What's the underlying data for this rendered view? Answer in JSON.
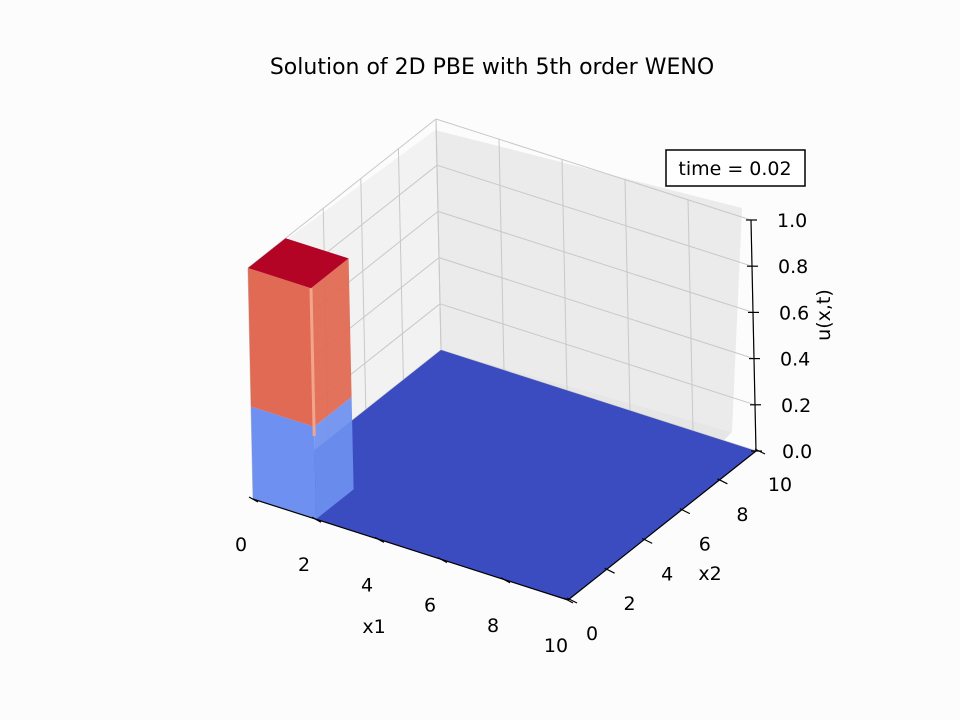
{
  "chart_data": {
    "type": "surface3d",
    "title": "Solution of 2D PBE with 5th order WENO",
    "xlabel": "x1",
    "ylabel": "x2",
    "zlabel": "u(x,t)",
    "annotation": "time = 0.02",
    "xlim": [
      0,
      10
    ],
    "ylim": [
      0,
      10
    ],
    "zlim": [
      0,
      1
    ],
    "x_ticks": [
      0,
      2,
      4,
      6,
      8,
      10
    ],
    "y_ticks": [
      0,
      2,
      4,
      6,
      8,
      10
    ],
    "z_ticks": [
      "0.0",
      "0.2",
      "0.4",
      "0.6",
      "0.8",
      "1.0"
    ],
    "grid": true,
    "colormap": "coolwarm",
    "colors": {
      "floor": "#3b4cc0",
      "lower_block": "#6e90f0",
      "upper_block": "#e06a53",
      "block_top": "#b40426",
      "highlight": "#f2a58b"
    },
    "surface": {
      "background_value": 0.0,
      "feature": {
        "x1_range": [
          0,
          2
        ],
        "x2_range": [
          0,
          2
        ],
        "levels": [
          {
            "z_range": [
              0.0,
              0.4
            ],
            "value": 0.3
          },
          {
            "z_range": [
              0.4,
              1.0
            ],
            "value": 0.8
          },
          {
            "z_range": [
              1.0,
              1.0
            ],
            "value": 1.0
          }
        ]
      }
    }
  }
}
